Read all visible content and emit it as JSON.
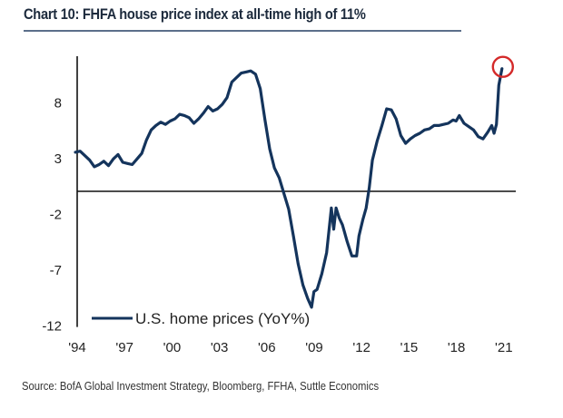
{
  "chart_data": {
    "type": "line",
    "title": "Chart 10: FHFA house price index at all-time high of 11%",
    "xlabel": "",
    "ylabel": "",
    "xlim": [
      1994,
      2021.3
    ],
    "ylim": [
      -12,
      13
    ],
    "yticks": [
      8,
      3,
      -2,
      -7,
      -12
    ],
    "ytick_labels": [
      "8",
      "3",
      "-2",
      "-7",
      "-12"
    ],
    "xticks": [
      1994,
      1997,
      2000,
      2003,
      2006,
      2009,
      2012,
      2015,
      2018,
      2021
    ],
    "xtick_labels": [
      "'94",
      "'97",
      "'00",
      "'03",
      "'06",
      "'09",
      "'12",
      "'15",
      "'18",
      "'21"
    ],
    "grid": false,
    "reference_line": 0,
    "legend": {
      "position": "bottom-left",
      "entries": [
        "U.S. home prices (YoY%)"
      ]
    },
    "annotations": [
      {
        "type": "circle",
        "x": 2021.0,
        "y": 11.0,
        "color": "#d42a2a"
      }
    ],
    "series": [
      {
        "name": "U.S. home prices (YoY%)",
        "color": "#14345c",
        "x": [
          1994.0,
          1994.3,
          1994.6,
          1994.9,
          1995.2,
          1995.5,
          1995.8,
          1996.1,
          1996.4,
          1996.7,
          1997.0,
          1997.3,
          1997.6,
          1997.9,
          1998.2,
          1998.5,
          1998.8,
          1999.1,
          1999.4,
          1999.7,
          2000.0,
          2000.3,
          2000.6,
          2000.9,
          2001.2,
          2001.5,
          2001.8,
          2002.1,
          2002.4,
          2002.7,
          2003.0,
          2003.3,
          2003.6,
          2003.9,
          2004.2,
          2004.5,
          2004.8,
          2005.1,
          2005.4,
          2005.7,
          2006.0,
          2006.3,
          2006.6,
          2006.9,
          2007.2,
          2007.5,
          2007.8,
          2008.1,
          2008.4,
          2008.7,
          2008.95,
          2009.1,
          2009.3,
          2009.6,
          2009.9,
          2010.2,
          2010.35,
          2010.5,
          2010.7,
          2010.9,
          2011.2,
          2011.5,
          2011.8,
          2011.95,
          2012.2,
          2012.4,
          2012.6,
          2012.8,
          2013.1,
          2013.4,
          2013.7,
          2014.0,
          2014.3,
          2014.6,
          2014.9,
          2015.2,
          2015.5,
          2015.8,
          2016.1,
          2016.4,
          2016.7,
          2017.0,
          2017.3,
          2017.6,
          2017.9,
          2018.1,
          2018.3,
          2018.6,
          2018.9,
          2019.2,
          2019.5,
          2019.8,
          2020.1,
          2020.35,
          2020.5,
          2020.65,
          2020.8,
          2021.0
        ],
        "y": [
          3.5,
          3.6,
          3.2,
          2.8,
          2.2,
          2.4,
          2.7,
          2.3,
          2.9,
          3.3,
          2.6,
          2.5,
          2.4,
          2.9,
          3.4,
          4.6,
          5.5,
          5.9,
          6.2,
          6.0,
          6.3,
          6.5,
          6.9,
          6.8,
          6.6,
          6.1,
          6.5,
          7.0,
          7.6,
          7.2,
          7.4,
          7.8,
          8.4,
          9.8,
          10.2,
          10.6,
          10.7,
          10.8,
          10.5,
          9.2,
          6.4,
          3.8,
          2.1,
          1.2,
          -0.2,
          -1.6,
          -4.0,
          -6.5,
          -8.4,
          -9.6,
          -10.4,
          -9.0,
          -8.8,
          -7.4,
          -5.5,
          -1.5,
          -3.4,
          -1.5,
          -2.4,
          -3.0,
          -4.5,
          -5.8,
          -5.8,
          -4.0,
          -2.5,
          -1.5,
          0.3,
          2.8,
          4.5,
          5.9,
          7.4,
          7.3,
          6.5,
          5.0,
          4.3,
          4.7,
          5.0,
          5.2,
          5.5,
          5.6,
          5.9,
          5.9,
          6.0,
          6.1,
          6.4,
          6.3,
          6.8,
          6.1,
          5.8,
          5.5,
          4.9,
          4.7,
          5.3,
          5.9,
          5.2,
          6.0,
          9.5,
          11.0
        ]
      }
    ]
  },
  "header": {
    "title": "Chart 10: FHFA house price index at all-time high of 11%"
  },
  "legend": {
    "label": "U.S. home prices (YoY%)"
  },
  "footer": {
    "source": "Source:  BofA Global Investment Strategy, Bloomberg, FFHA, Suttle Economics"
  }
}
